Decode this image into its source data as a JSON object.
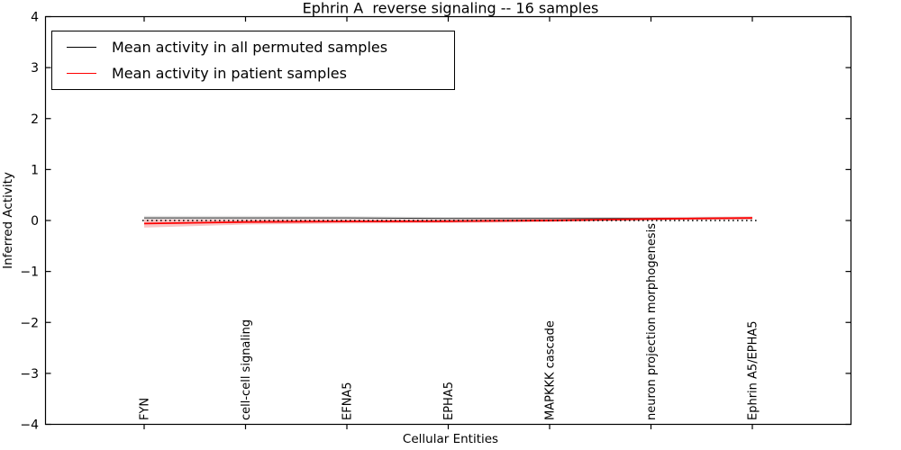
{
  "figure": {
    "title": "Ephrin A  reverse signaling -- 16 samples",
    "xlabel": "Cellular Entities",
    "ylabel": "Inferred Activity"
  },
  "legend": {
    "position": "upper left",
    "items": [
      {
        "label": "Mean activity in all permuted samples",
        "color": "#000000"
      },
      {
        "label": "Mean activity in patient samples",
        "color": "#ff0000"
      }
    ]
  },
  "chart_data": {
    "type": "line",
    "title": "Ephrin A  reverse signaling -- 16 samples",
    "xlabel": "Cellular Entities",
    "ylabel": "Inferred Activity",
    "ylim": [
      -4,
      4
    ],
    "yticks": [
      4,
      3,
      2,
      1,
      0,
      -1,
      -2,
      -3,
      -4
    ],
    "ytick_labels": [
      "4",
      "3",
      "2",
      "1",
      "0",
      "−1",
      "−2",
      "−3",
      "−4"
    ],
    "categories": [
      "FYN",
      "cell-cell signaling",
      "EFNA5",
      "EPHA5",
      "MAPKKK cascade",
      "neuron projection morphogenesis",
      "Ephrin A5/EPHA5"
    ],
    "series": [
      {
        "name": "Mean activity in all permuted samples",
        "color": "#000000",
        "band_color": "#d8d8d8",
        "values": [
          0.05,
          0.05,
          0.05,
          0.04,
          0.04,
          0.04,
          0.05
        ],
        "std": [
          0.04,
          0.04,
          0.035,
          0.03,
          0.03,
          0.03,
          0.03
        ]
      },
      {
        "name": "Mean activity in patient samples",
        "color": "#ff0000",
        "band_color": "#f08080",
        "values": [
          -0.06,
          -0.03,
          -0.02,
          -0.015,
          0.0,
          0.03,
          0.05
        ],
        "std": [
          0.08,
          0.05,
          0.04,
          0.035,
          0.03,
          0.03,
          0.025
        ]
      }
    ],
    "reference_line": {
      "y": 0,
      "style": "dotted",
      "color": "#000000"
    },
    "legend_position": "upper left",
    "grid": false
  }
}
